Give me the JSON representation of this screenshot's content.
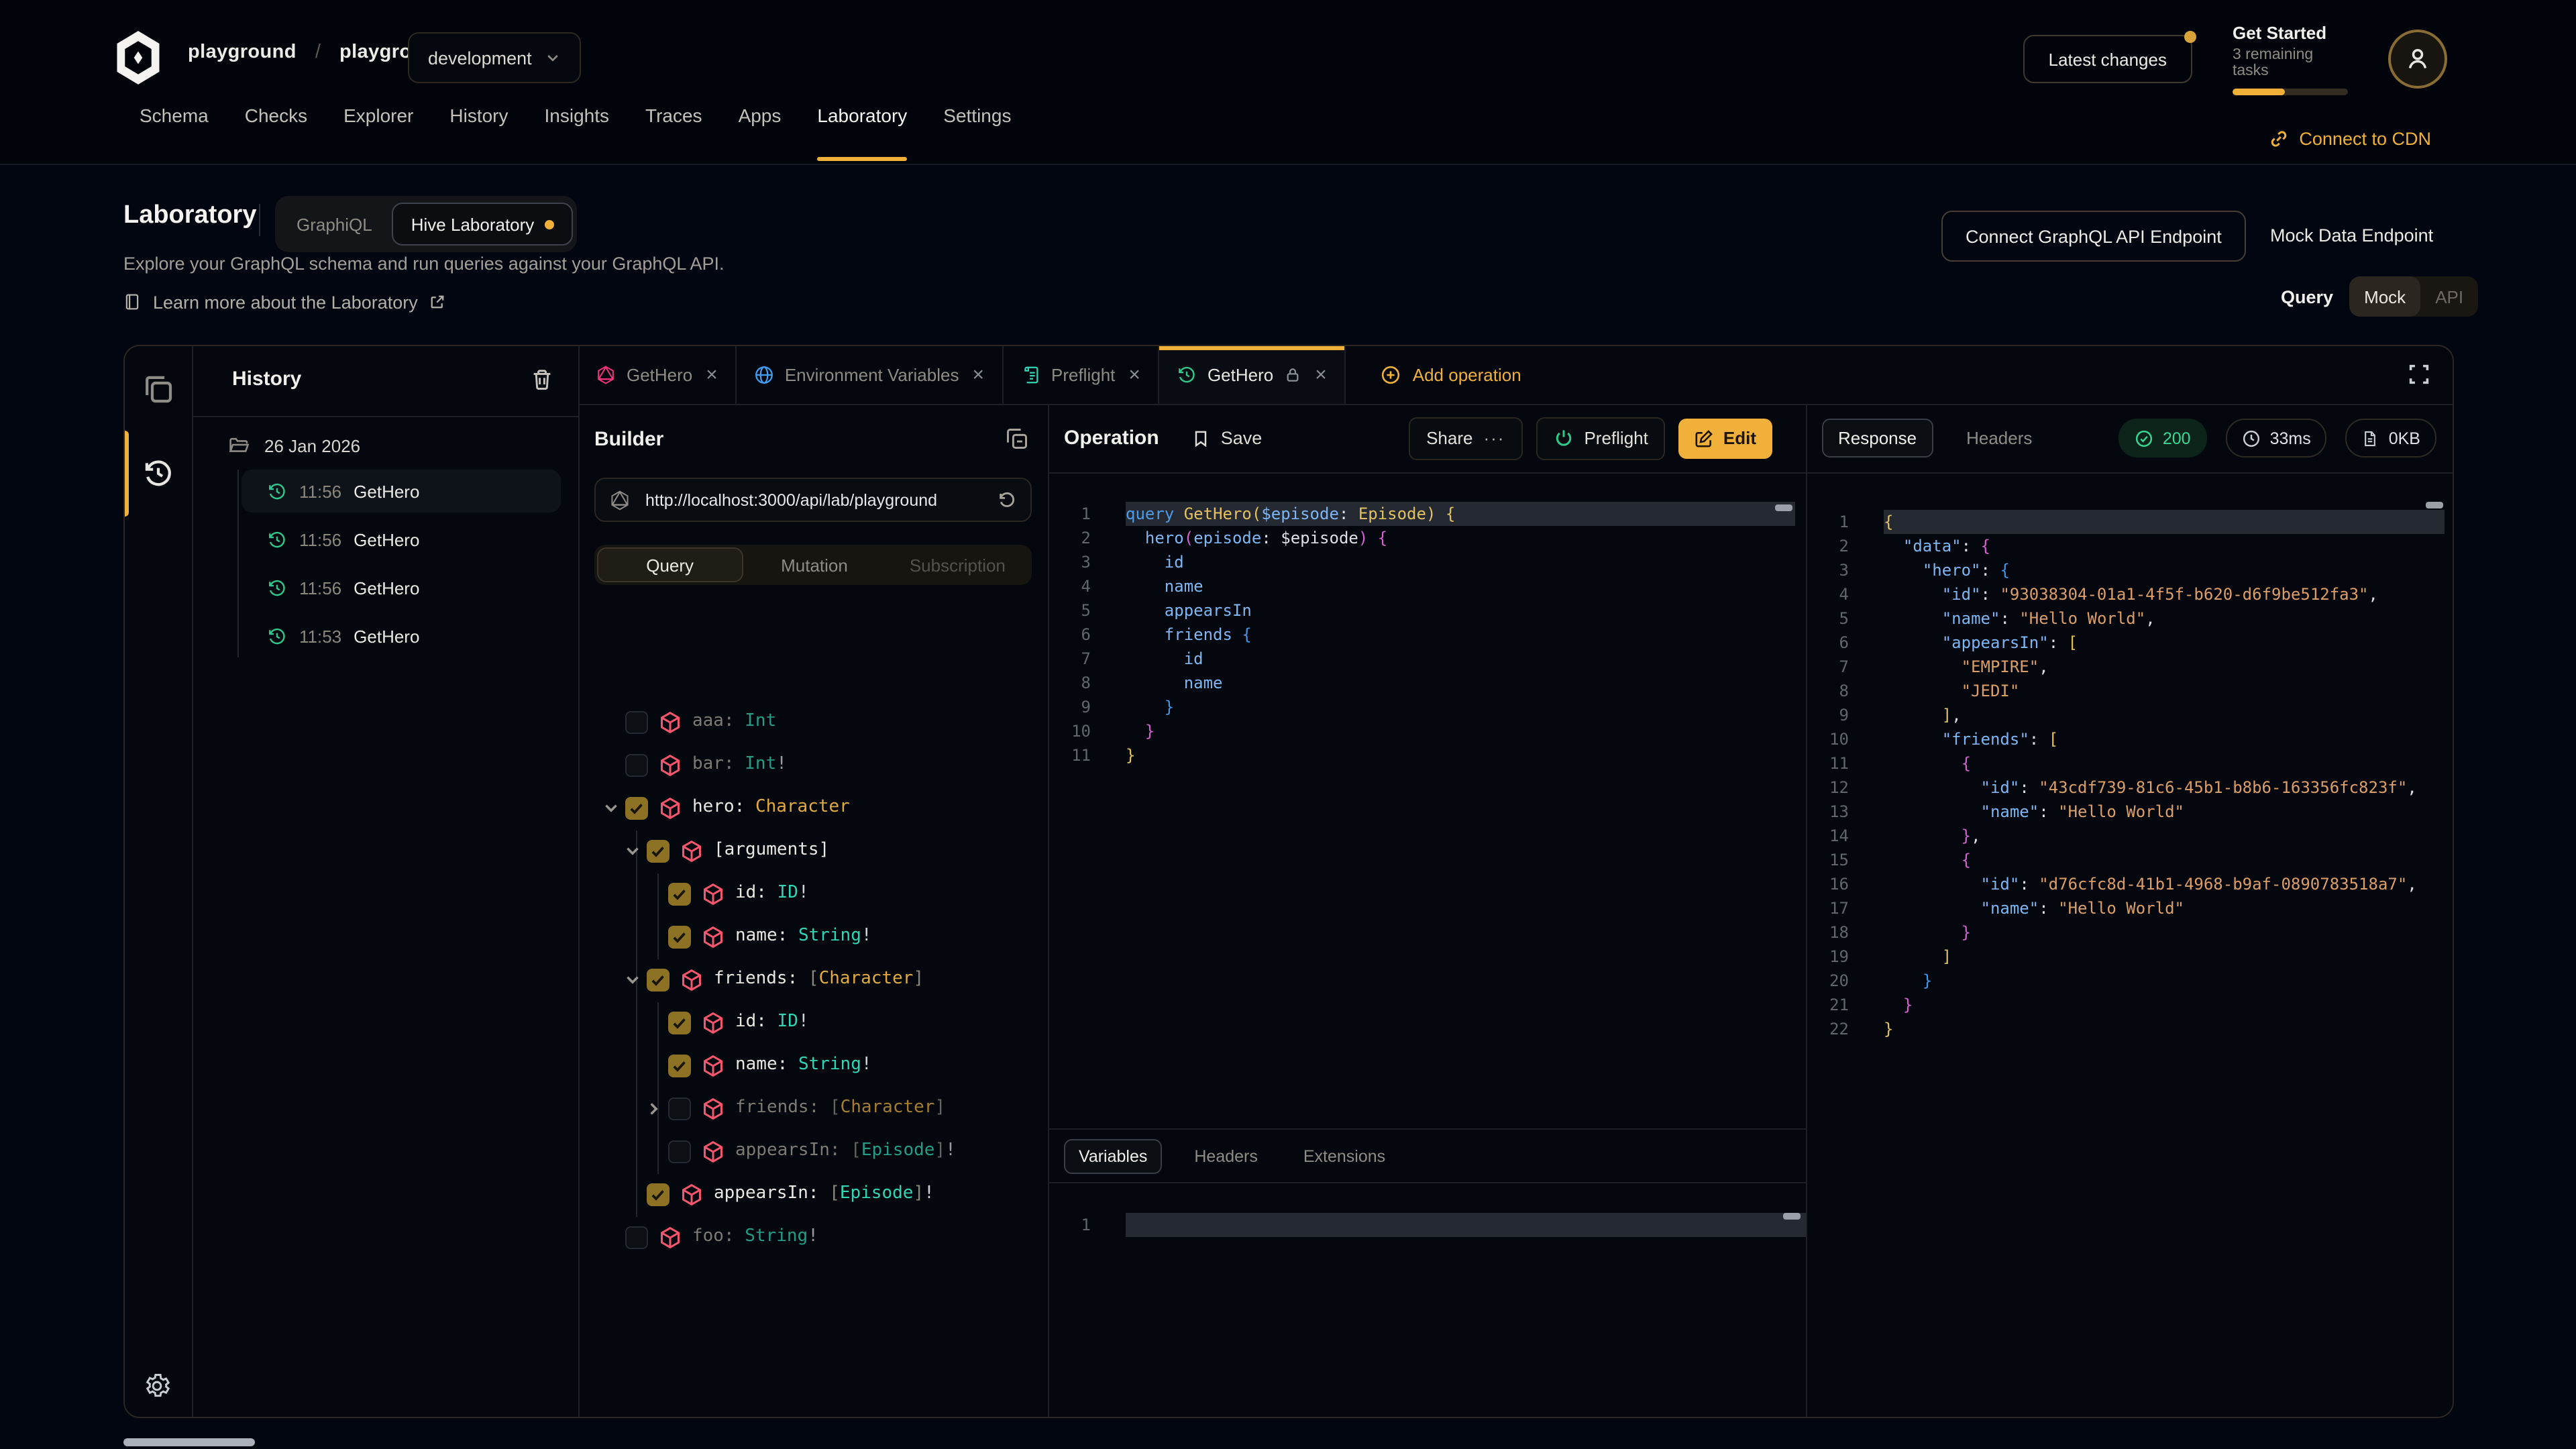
{
  "header": {
    "org": "playground",
    "slash": "/",
    "project": "playground",
    "env": "development",
    "latest_changes": "Latest changes",
    "get_started": {
      "title": "Get Started",
      "subtitle": "3 remaining tasks",
      "progress_pct": 45
    },
    "nav": [
      {
        "label": "Schema"
      },
      {
        "label": "Checks"
      },
      {
        "label": "Explorer"
      },
      {
        "label": "History"
      },
      {
        "label": "Insights"
      },
      {
        "label": "Traces"
      },
      {
        "label": "Apps"
      },
      {
        "label": "Laboratory",
        "active": true
      },
      {
        "label": "Settings"
      }
    ],
    "connect_cdn": "Connect to CDN"
  },
  "lab": {
    "title": "Laboratory",
    "mode_toggle": {
      "graphiql": "GraphiQL",
      "hive": "Hive Laboratory"
    },
    "description": "Explore your GraphQL schema and run queries against your GraphQL API.",
    "learn_more": "Learn more about the Laboratory",
    "connect_endpoint": "Connect GraphQL API Endpoint",
    "mock_endpoint": "Mock Data Endpoint",
    "query_label": "Query",
    "mock": "Mock",
    "api": "API"
  },
  "workspace": {
    "tabs": [
      {
        "icon": "graphql",
        "label": "GetHero",
        "close": true
      },
      {
        "icon": "globe",
        "label": "Environment Variables",
        "close": true
      },
      {
        "icon": "preflight",
        "label": "Preflight",
        "close": true
      },
      {
        "icon": "history",
        "label": "GetHero",
        "locked": true,
        "close": true,
        "active": true
      }
    ],
    "add_operation": "Add operation",
    "history": {
      "title": "History",
      "date": "26 Jan 2026",
      "entries": [
        {
          "time": "11:56",
          "name": "GetHero",
          "selected": true
        },
        {
          "time": "11:56",
          "name": "GetHero"
        },
        {
          "time": "11:56",
          "name": "GetHero"
        },
        {
          "time": "11:53",
          "name": "GetHero"
        }
      ]
    },
    "builder": {
      "title": "Builder",
      "url": "http://localhost:3000/api/lab/playground",
      "tabs": [
        "Query",
        "Mutation",
        "Subscription"
      ],
      "active_tab": "Query",
      "fields": [
        {
          "depth": 0,
          "checked": false,
          "dim": true,
          "label": "aaa:",
          "type": [
            [
              "tl",
              "Int"
            ]
          ]
        },
        {
          "depth": 0,
          "checked": false,
          "dim": true,
          "label": "bar:",
          "type": [
            [
              "tl",
              "Int"
            ],
            [
              "tp",
              "!"
            ]
          ]
        },
        {
          "depth": 0,
          "checked": true,
          "chev": "down",
          "label": "hero:",
          "type": [
            [
              "ty",
              "Character"
            ]
          ]
        },
        {
          "depth": 1,
          "checked": true,
          "chev": "down",
          "label": "[arguments]",
          "type": []
        },
        {
          "depth": 2,
          "checked": true,
          "label": "id:",
          "type": [
            [
              "tl",
              "ID"
            ],
            [
              "tp",
              "!"
            ]
          ]
        },
        {
          "depth": 2,
          "checked": true,
          "label": "name:",
          "type": [
            [
              "tl",
              "String"
            ],
            [
              "tp",
              "!"
            ]
          ]
        },
        {
          "depth": 1,
          "checked": true,
          "chev": "down",
          "label": "friends:",
          "type": [
            [
              "tb",
              "["
            ],
            [
              "ty",
              "Character"
            ],
            [
              "tb",
              "]"
            ]
          ]
        },
        {
          "depth": 2,
          "checked": true,
          "label": "id:",
          "type": [
            [
              "tl",
              "ID"
            ],
            [
              "tp",
              "!"
            ]
          ]
        },
        {
          "depth": 2,
          "checked": true,
          "label": "name:",
          "type": [
            [
              "tl",
              "String"
            ],
            [
              "tp",
              "!"
            ]
          ]
        },
        {
          "depth": 2,
          "checked": false,
          "dim": true,
          "chev": "right",
          "label": "friends:",
          "type": [
            [
              "tb",
              "["
            ],
            [
              "ty",
              "Character"
            ],
            [
              "tb",
              "]"
            ]
          ]
        },
        {
          "depth": 2,
          "checked": false,
          "dim": true,
          "label": "appearsIn:",
          "type": [
            [
              "tb",
              "["
            ],
            [
              "tl",
              "Episode"
            ],
            [
              "tb",
              "]"
            ],
            [
              "tp",
              "!"
            ]
          ]
        },
        {
          "depth": 1,
          "checked": true,
          "label": "appearsIn:",
          "type": [
            [
              "tb",
              "["
            ],
            [
              "tl",
              "Episode"
            ],
            [
              "tb",
              "]"
            ],
            [
              "tp",
              "!"
            ]
          ]
        },
        {
          "depth": 0,
          "checked": false,
          "dim": true,
          "label": "foo:",
          "type": [
            [
              "tl",
              "String"
            ],
            [
              "tp",
              "!"
            ]
          ]
        }
      ]
    },
    "operation": {
      "title": "Operation",
      "save": "Save",
      "share": "Share",
      "preflight": "Preflight",
      "edit": "Edit",
      "code": [
        [
          [
            "kw",
            "query"
          ],
          [
            "wt",
            " "
          ],
          [
            "yl",
            "GetHero("
          ],
          [
            "fld",
            "$episode"
          ],
          [
            "wt",
            ": "
          ],
          [
            "yl",
            "Episode"
          ],
          [
            "yl",
            ")"
          ],
          [
            "wt",
            " "
          ],
          [
            "yl",
            "{"
          ]
        ],
        [
          [
            "wt",
            "  "
          ],
          [
            "fld",
            "hero"
          ],
          [
            "mg",
            "("
          ],
          [
            "fld",
            "episode"
          ],
          [
            "wt",
            ": $episode"
          ],
          [
            "mg",
            ")"
          ],
          [
            "wt",
            " "
          ],
          [
            "mg",
            "{"
          ]
        ],
        [
          [
            "fld",
            "    id"
          ]
        ],
        [
          [
            "fld",
            "    name"
          ]
        ],
        [
          [
            "fld",
            "    appearsIn"
          ]
        ],
        [
          [
            "fld",
            "    friends "
          ],
          [
            "bl",
            "{"
          ]
        ],
        [
          [
            "fld",
            "      id"
          ]
        ],
        [
          [
            "fld",
            "      name"
          ]
        ],
        [
          [
            "bl",
            "    }"
          ]
        ],
        [
          [
            "mg",
            "  }"
          ]
        ],
        [
          [
            "yl",
            "}"
          ]
        ]
      ]
    },
    "io_tabs": [
      "Variables",
      "Headers",
      "Extensions"
    ],
    "io_active": "Variables",
    "response": {
      "tabs": [
        "Response",
        "Headers"
      ],
      "active": "Response",
      "status": "200",
      "time": "33ms",
      "size": "0KB",
      "code": [
        [
          [
            "yl",
            "{"
          ]
        ],
        [
          [
            "wt",
            "  "
          ],
          [
            "fld",
            "\"data\""
          ],
          [
            "wt",
            ": "
          ],
          [
            "mg",
            "{"
          ]
        ],
        [
          [
            "wt",
            "    "
          ],
          [
            "fld",
            "\"hero\""
          ],
          [
            "wt",
            ": "
          ],
          [
            "bl",
            "{"
          ]
        ],
        [
          [
            "wt",
            "      "
          ],
          [
            "fld",
            "\"id\""
          ],
          [
            "wt",
            ": "
          ],
          [
            "st",
            "\"93038304-01a1-4f5f-b620-d6f9be512fa3\""
          ],
          [
            "wt",
            ","
          ]
        ],
        [
          [
            "wt",
            "      "
          ],
          [
            "fld",
            "\"name\""
          ],
          [
            "wt",
            ": "
          ],
          [
            "st",
            "\"Hello World\""
          ],
          [
            "wt",
            ","
          ]
        ],
        [
          [
            "wt",
            "      "
          ],
          [
            "fld",
            "\"appearsIn\""
          ],
          [
            "wt",
            ": "
          ],
          [
            "yl",
            "["
          ]
        ],
        [
          [
            "wt",
            "        "
          ],
          [
            "st",
            "\"EMPIRE\""
          ],
          [
            "wt",
            ","
          ]
        ],
        [
          [
            "wt",
            "        "
          ],
          [
            "st",
            "\"JEDI\""
          ]
        ],
        [
          [
            "wt",
            "      "
          ],
          [
            "yl",
            "]"
          ],
          [
            "wt",
            ","
          ]
        ],
        [
          [
            "wt",
            "      "
          ],
          [
            "fld",
            "\"friends\""
          ],
          [
            "wt",
            ": "
          ],
          [
            "yl",
            "["
          ]
        ],
        [
          [
            "wt",
            "        "
          ],
          [
            "mg",
            "{"
          ]
        ],
        [
          [
            "wt",
            "          "
          ],
          [
            "fld",
            "\"id\""
          ],
          [
            "wt",
            ": "
          ],
          [
            "st",
            "\"43cdf739-81c6-45b1-b8b6-163356fc823f\""
          ],
          [
            "wt",
            ","
          ]
        ],
        [
          [
            "wt",
            "          "
          ],
          [
            "fld",
            "\"name\""
          ],
          [
            "wt",
            ": "
          ],
          [
            "st",
            "\"Hello World\""
          ]
        ],
        [
          [
            "wt",
            "        "
          ],
          [
            "mg",
            "}"
          ],
          [
            "wt",
            ","
          ]
        ],
        [
          [
            "wt",
            "        "
          ],
          [
            "mg",
            "{"
          ]
        ],
        [
          [
            "wt",
            "          "
          ],
          [
            "fld",
            "\"id\""
          ],
          [
            "wt",
            ": "
          ],
          [
            "st",
            "\"d76cfc8d-41b1-4968-b9af-0890783518a7\""
          ],
          [
            "wt",
            ","
          ]
        ],
        [
          [
            "wt",
            "          "
          ],
          [
            "fld",
            "\"name\""
          ],
          [
            "wt",
            ": "
          ],
          [
            "st",
            "\"Hello World\""
          ]
        ],
        [
          [
            "wt",
            "        "
          ],
          [
            "mg",
            "}"
          ]
        ],
        [
          [
            "wt",
            "      "
          ],
          [
            "yl",
            "]"
          ]
        ],
        [
          [
            "wt",
            "    "
          ],
          [
            "bl",
            "}"
          ]
        ],
        [
          [
            "wt",
            "  "
          ],
          [
            "mg",
            "}"
          ]
        ],
        [
          [
            "yl",
            "}"
          ]
        ]
      ]
    }
  },
  "colors": {
    "accent": "#f0b03a",
    "status_green": "#36d893",
    "type_teal": "#2fd6b5",
    "type_yellow": "#e0ab41",
    "cube_pink": "#f4566e",
    "entry_green": "#2ec88b"
  }
}
